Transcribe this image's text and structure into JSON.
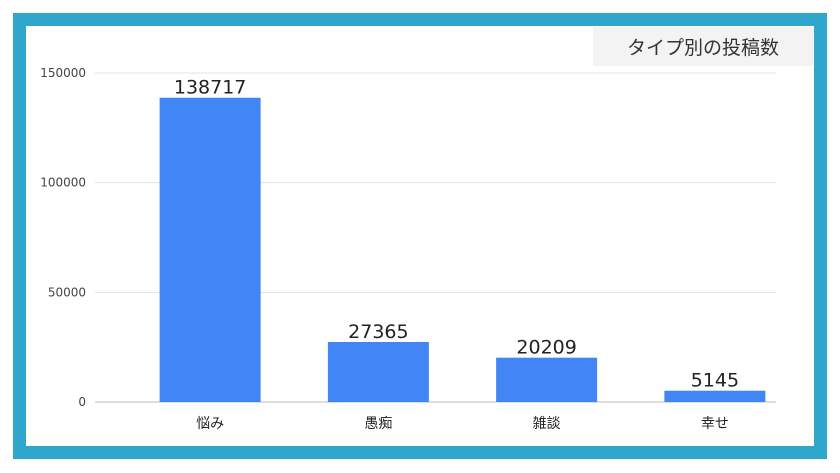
{
  "chart_data": {
    "type": "bar",
    "title": "タイプ別の投稿数",
    "categories": [
      "悩み",
      "愚痴",
      "雑談",
      "幸せ"
    ],
    "values": [
      138717,
      27365,
      20209,
      5145
    ],
    "data_labels": [
      "138717",
      "27365",
      "20209",
      "5145"
    ],
    "xlabel": "",
    "ylabel": "",
    "ylim": [
      0,
      150000
    ],
    "yticks": [
      "0",
      "50000",
      "100000",
      "150000"
    ],
    "grid": true,
    "legend": "none",
    "colors": {
      "bar": "#4285f4",
      "frame": "#2fa6cc",
      "title_bg": "#f3f3f3"
    }
  }
}
